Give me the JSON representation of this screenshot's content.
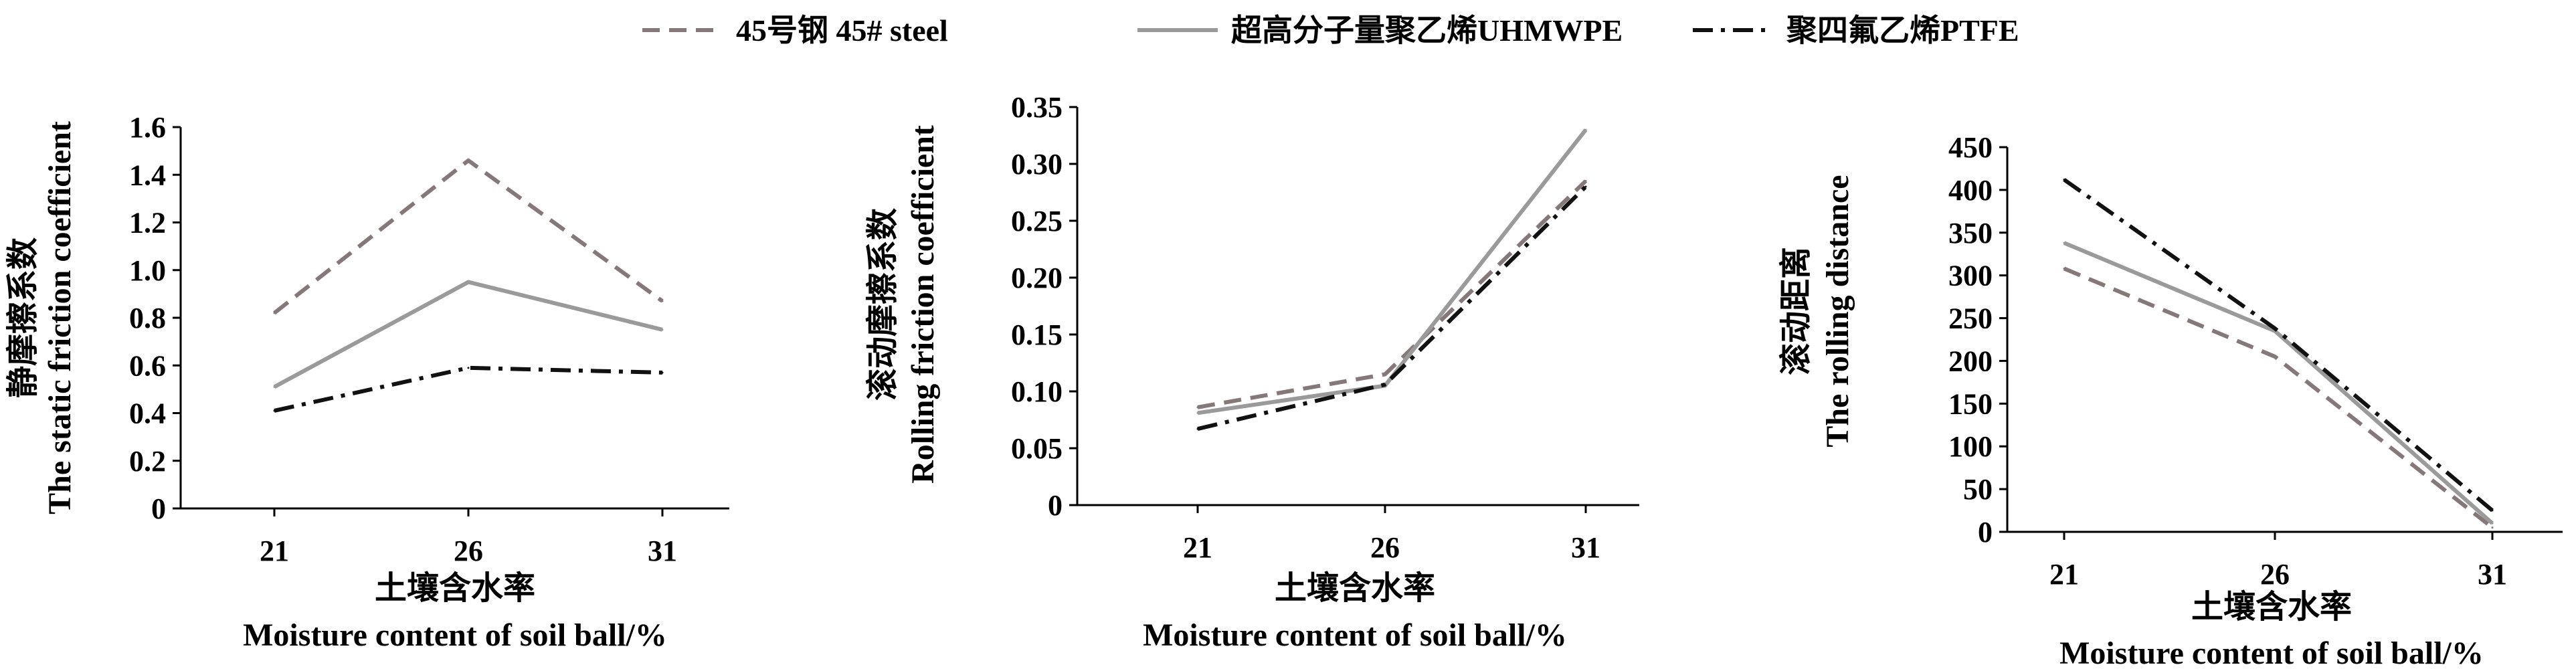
{
  "legend": [
    {
      "label": "45号钢 45# steel",
      "color": "#857878",
      "dash": "dash"
    },
    {
      "label": "超高分子量聚乙烯UHMWPE",
      "color": "#9a9a9a",
      "dash": "solid"
    },
    {
      "label": "聚四氟乙烯PTFE",
      "color": "#111111",
      "dash": "dashdot"
    }
  ],
  "chart_data": [
    {
      "type": "line",
      "categories": [
        "21",
        "26",
        "31"
      ],
      "ylabel_cn": "静摩擦系数",
      "ylabel": "The static friction coefficient",
      "xlabel_cn": "土壤含水率",
      "xlabel": "Moisture content of soil ball/%",
      "ylim": [
        0,
        1.6
      ],
      "yticks": [
        "0",
        "0.2",
        "0.4",
        "0.6",
        "0.8",
        "1.0",
        "1.2",
        "1.4",
        "1.6"
      ],
      "grid": false,
      "series": [
        {
          "name": "45号钢 45# steel",
          "values": [
            0.82,
            1.46,
            0.87
          ]
        },
        {
          "name": "超高分子量聚乙烯UHMWPE",
          "values": [
            0.51,
            0.95,
            0.75
          ]
        },
        {
          "name": "聚四氟乙烯PTFE",
          "values": [
            0.41,
            0.59,
            0.57
          ]
        }
      ]
    },
    {
      "type": "line",
      "categories": [
        "21",
        "26",
        "31"
      ],
      "ylabel_cn": "滚动摩擦系数",
      "ylabel": "Rolling friction coefficient",
      "xlabel_cn": "土壤含水率",
      "xlabel": "Moisture content of soil ball/%",
      "ylim": [
        0,
        0.35
      ],
      "yticks": [
        "0",
        "0.05",
        "0.10",
        "0.15",
        "0.20",
        "0.25",
        "0.30",
        "0.35"
      ],
      "grid": false,
      "series": [
        {
          "name": "45号钢 45# steel",
          "values": [
            0.086,
            0.115,
            0.285
          ]
        },
        {
          "name": "超高分子量聚乙烯UHMWPE",
          "values": [
            0.081,
            0.105,
            0.33
          ]
        },
        {
          "name": "聚四氟乙烯PTFE",
          "values": [
            0.067,
            0.106,
            0.28
          ]
        }
      ]
    },
    {
      "type": "line",
      "categories": [
        "21",
        "26",
        "31"
      ],
      "ylabel_cn": "滚动距离",
      "ylabel": "The rolling distance",
      "xlabel_cn": "土壤含水率",
      "xlabel": "Moisture content of soil ball/%",
      "ylim": [
        0,
        450
      ],
      "yticks": [
        "0",
        "50",
        "100",
        "150",
        "200",
        "250",
        "300",
        "350",
        "400",
        "450"
      ],
      "grid": false,
      "series": [
        {
          "name": "45号钢 45# steel",
          "values": [
            308,
            205,
            5
          ]
        },
        {
          "name": "超高分子量聚乙烯UHMWPE",
          "values": [
            338,
            235,
            10
          ]
        },
        {
          "name": "聚四氟乙烯PTFE",
          "values": [
            412,
            238,
            25
          ]
        }
      ]
    }
  ]
}
